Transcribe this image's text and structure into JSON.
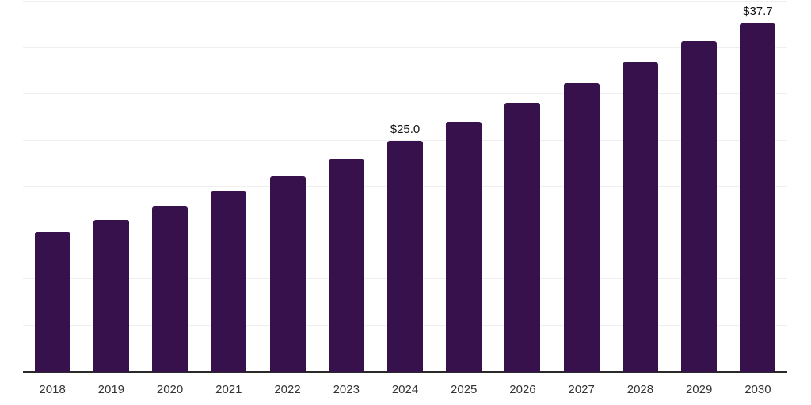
{
  "chart_data": {
    "type": "bar",
    "title": "",
    "xlabel": "",
    "ylabel": "",
    "categories": [
      "2018",
      "2019",
      "2020",
      "2021",
      "2022",
      "2023",
      "2024",
      "2025",
      "2026",
      "2027",
      "2028",
      "2029",
      "2030"
    ],
    "values": [
      15.1,
      16.4,
      17.9,
      19.5,
      21.1,
      23.0,
      25.0,
      27.0,
      29.1,
      31.2,
      33.4,
      35.7,
      37.7
    ],
    "annotations": [
      {
        "category": "2024",
        "text": "$25.0"
      },
      {
        "category": "2030",
        "text": "$37.7"
      }
    ],
    "ylim": [
      0,
      40
    ],
    "gridline_values": [
      5,
      10,
      15,
      20,
      25,
      30,
      35,
      40
    ],
    "grid_on": true,
    "legend": "none",
    "colors": {
      "bar": "#36114B",
      "gridline": "#EFEFEF",
      "axis_line": "#2A2A2A",
      "tick_label": "#333333",
      "value_label": "#111111",
      "background": "#FFFFFF"
    }
  }
}
